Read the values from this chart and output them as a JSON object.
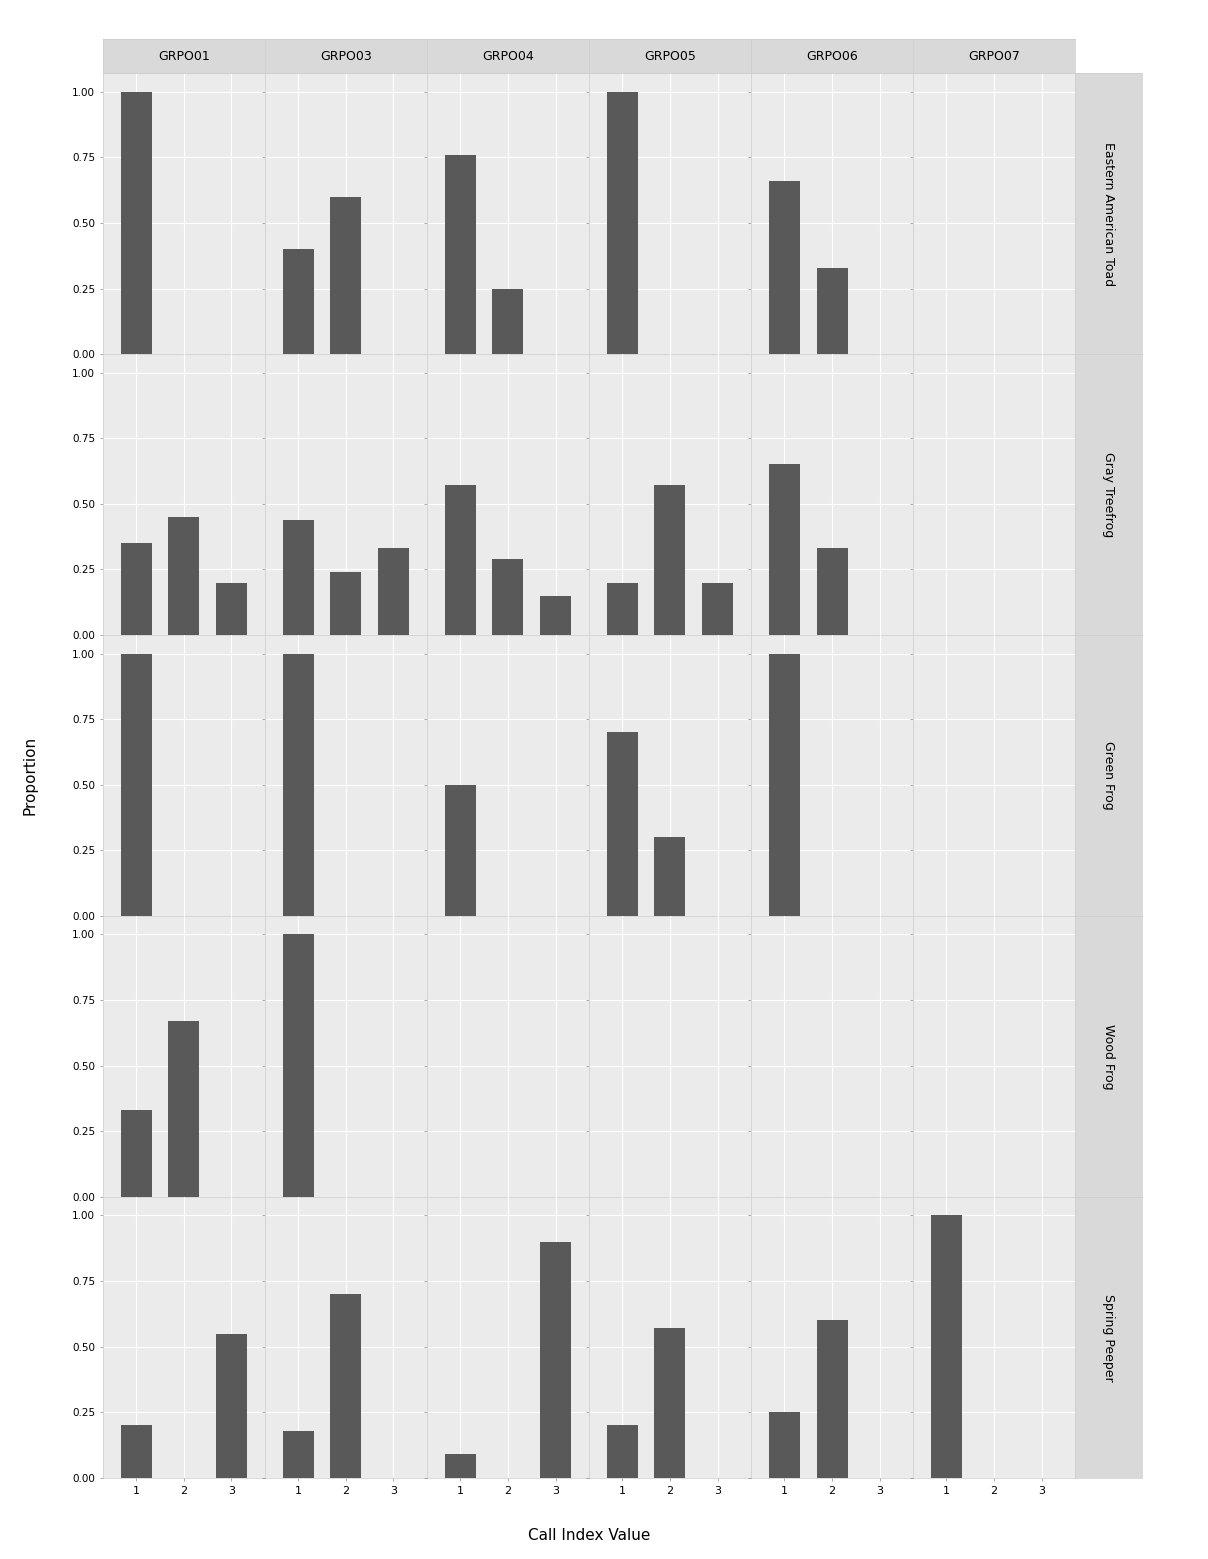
{
  "species": [
    "Eastern American Toad",
    "Gray Treefrog",
    "Green Frog",
    "Wood Frog",
    "Spring Peeper"
  ],
  "sites": [
    "GRPO01",
    "GRPO03",
    "GRPO04",
    "GRPO05",
    "GRPO06",
    "GRPO07"
  ],
  "bar_color": "#595959",
  "background_color": "#ebebeb",
  "strip_color": "#d9d9d9",
  "grid_color": "#ffffff",
  "outer_bg": "#ffffff",
  "xlabel": "Call Index Value",
  "ylabel": "Proportion",
  "values": {
    "Eastern American Toad": {
      "GRPO01": [
        1.0,
        0.0,
        0.0
      ],
      "GRPO03": [
        0.4,
        0.6,
        0.0
      ],
      "GRPO04": [
        0.76,
        0.25,
        0.0
      ],
      "GRPO05": [
        1.0,
        0.0,
        0.0
      ],
      "GRPO06": [
        0.66,
        0.33,
        0.0
      ],
      "GRPO07": [
        0.0,
        0.0,
        0.0
      ]
    },
    "Gray Treefrog": {
      "GRPO01": [
        0.35,
        0.45,
        0.2
      ],
      "GRPO03": [
        0.44,
        0.24,
        0.33
      ],
      "GRPO04": [
        0.57,
        0.29,
        0.15
      ],
      "GRPO05": [
        0.2,
        0.57,
        0.2
      ],
      "GRPO06": [
        0.65,
        0.33,
        0.0
      ],
      "GRPO07": [
        0.0,
        0.0,
        0.0
      ]
    },
    "Green Frog": {
      "GRPO01": [
        1.0,
        0.0,
        0.0
      ],
      "GRPO03": [
        1.0,
        0.0,
        0.0
      ],
      "GRPO04": [
        0.5,
        0.0,
        0.0
      ],
      "GRPO05": [
        0.7,
        0.3,
        0.0
      ],
      "GRPO06": [
        1.0,
        0.0,
        0.0
      ],
      "GRPO07": [
        0.0,
        0.0,
        0.0
      ]
    },
    "Wood Frog": {
      "GRPO01": [
        0.33,
        0.67,
        0.0
      ],
      "GRPO03": [
        1.0,
        0.0,
        0.0
      ],
      "GRPO04": [
        0.0,
        0.0,
        0.0
      ],
      "GRPO05": [
        0.0,
        0.0,
        0.0
      ],
      "GRPO06": [
        0.0,
        0.0,
        0.0
      ],
      "GRPO07": [
        0.0,
        0.0,
        0.0
      ]
    },
    "Spring Peeper": {
      "GRPO01": [
        0.2,
        0.0,
        0.55
      ],
      "GRPO03": [
        0.18,
        0.7,
        0.0
      ],
      "GRPO04": [
        0.09,
        0.0,
        0.9
      ],
      "GRPO05": [
        0.2,
        0.57,
        0.0
      ],
      "GRPO06": [
        0.25,
        0.6,
        0.0
      ],
      "GRPO07": [
        1.0,
        0.0,
        0.0
      ]
    }
  },
  "yticks": [
    0.0,
    0.25,
    0.5,
    0.75,
    1.0
  ],
  "ytick_labels": [
    "0.00",
    "0.25",
    "0.50",
    "0.75",
    "1.00"
  ],
  "xticks": [
    1,
    2,
    3
  ]
}
